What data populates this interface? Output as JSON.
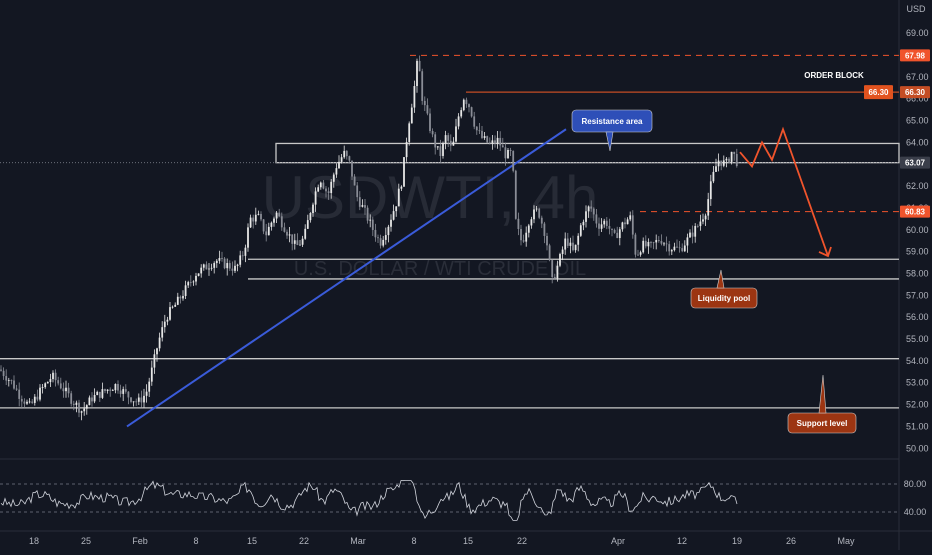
{
  "chart_data": {
    "type": "candlestick",
    "symbol_watermark": "USDWTI, 4h",
    "watermark_subtitle": "U.S. DOLLAR / WTI CRUDE OIL",
    "currency": "USD",
    "y_range": [
      49.6,
      69.6
    ],
    "y_ticks": [
      "69.00",
      "67.00",
      "66.00",
      "65.00",
      "64.00",
      "63.00",
      "62.00",
      "61.00",
      "60.00",
      "59.00",
      "58.00",
      "57.00",
      "56.00",
      "55.00",
      "54.00",
      "53.00",
      "52.00",
      "51.00",
      "50.00"
    ],
    "x_ticks": [
      "18",
      "25",
      "Feb",
      "8",
      "15",
      "22",
      "Mar",
      "8",
      "15",
      "22",
      "Apr",
      "12",
      "19",
      "26",
      "May"
    ],
    "price_path": [
      [
        0,
        53.6
      ],
      [
        12,
        53.0
      ],
      [
        20,
        52.4
      ],
      [
        30,
        51.9
      ],
      [
        40,
        52.6
      ],
      [
        52,
        53.3
      ],
      [
        62,
        52.8
      ],
      [
        72,
        52.2
      ],
      [
        82,
        51.7
      ],
      [
        92,
        52.3
      ],
      [
        104,
        52.6
      ],
      [
        116,
        52.9
      ],
      [
        128,
        52.4
      ],
      [
        138,
        52.1
      ],
      [
        146,
        52.5
      ],
      [
        152,
        53.6
      ],
      [
        158,
        54.8
      ],
      [
        166,
        56.0
      ],
      [
        176,
        56.6
      ],
      [
        186,
        57.3
      ],
      [
        196,
        58.0
      ],
      [
        206,
        58.3
      ],
      [
        216,
        58.6
      ],
      [
        226,
        58.4
      ],
      [
        236,
        58.2
      ],
      [
        244,
        59.0
      ],
      [
        250,
        60.5
      ],
      [
        258,
        60.6
      ],
      [
        266,
        59.8
      ],
      [
        276,
        60.8
      ],
      [
        286,
        60.0
      ],
      [
        296,
        59.2
      ],
      [
        304,
        59.6
      ],
      [
        312,
        61.2
      ],
      [
        320,
        62.4
      ],
      [
        328,
        61.6
      ],
      [
        336,
        62.9
      ],
      [
        344,
        63.5
      ],
      [
        350,
        63.0
      ],
      [
        356,
        61.6
      ],
      [
        364,
        60.9
      ],
      [
        372,
        60.1
      ],
      [
        380,
        59.4
      ],
      [
        388,
        60.2
      ],
      [
        396,
        61.2
      ],
      [
        402,
        62.3
      ],
      [
        408,
        64.7
      ],
      [
        414,
        66.4
      ],
      [
        418,
        67.9
      ],
      [
        422,
        66.1
      ],
      [
        428,
        65.0
      ],
      [
        434,
        64.0
      ],
      [
        440,
        63.4
      ],
      [
        446,
        64.3
      ],
      [
        452,
        63.6
      ],
      [
        458,
        65.1
      ],
      [
        464,
        66.1
      ],
      [
        470,
        65.6
      ],
      [
        476,
        64.6
      ],
      [
        482,
        64.2
      ],
      [
        490,
        63.9
      ],
      [
        498,
        64.1
      ],
      [
        506,
        63.4
      ],
      [
        512,
        63.5
      ],
      [
        516,
        60.2
      ],
      [
        522,
        59.4
      ],
      [
        530,
        60.6
      ],
      [
        538,
        60.9
      ],
      [
        546,
        59.7
      ],
      [
        552,
        57.6
      ],
      [
        558,
        58.4
      ],
      [
        566,
        59.6
      ],
      [
        574,
        58.9
      ],
      [
        582,
        60.4
      ],
      [
        590,
        61.1
      ],
      [
        598,
        60.2
      ],
      [
        606,
        60.4
      ],
      [
        614,
        59.6
      ],
      [
        622,
        60.2
      ],
      [
        630,
        60.6
      ],
      [
        636,
        58.8
      ],
      [
        642,
        59.3
      ],
      [
        650,
        59.2
      ],
      [
        660,
        59.6
      ],
      [
        670,
        59.2
      ],
      [
        680,
        59.1
      ],
      [
        690,
        59.7
      ],
      [
        698,
        60.2
      ],
      [
        706,
        60.9
      ],
      [
        712,
        62.3
      ],
      [
        718,
        63.2
      ],
      [
        726,
        63.0
      ],
      [
        732,
        63.6
      ],
      [
        738,
        63.0
      ]
    ],
    "horizontal_levels": [
      {
        "price": 67.98,
        "label": "67.98",
        "style": "dashed",
        "color": "#f0542c"
      },
      {
        "price": 66.3,
        "label": "66.30",
        "style": "solid",
        "color": "#c44d24"
      },
      {
        "price": 63.07,
        "label": "63.07",
        "style": "dotted",
        "color": "#787b86"
      },
      {
        "price": 60.83,
        "label": "60.83",
        "style": "dashed",
        "color": "#f0542c"
      },
      {
        "price": 58.65,
        "label": "",
        "style": "solid",
        "color": "#c8c8c8"
      },
      {
        "price": 57.75,
        "label": "",
        "style": "solid",
        "color": "#c8c8c8"
      },
      {
        "price": 54.1,
        "label": "",
        "style": "solid",
        "color": "#c8c8c8"
      },
      {
        "price": 51.85,
        "label": "",
        "style": "solid",
        "color": "#c8c8c8"
      }
    ],
    "annotations": [
      {
        "text": "ORDER BLOCK",
        "type": "plain"
      },
      {
        "text": "Resistance area",
        "type": "callout",
        "color": "#2e4fb8"
      },
      {
        "text": "Liquidity pool",
        "type": "callout",
        "color": "#9c3512"
      },
      {
        "text": "Support level",
        "type": "callout",
        "color": "#9c3512"
      }
    ],
    "oscillator": {
      "levels": [
        "80.00",
        "40.00"
      ]
    },
    "colors": {
      "background": "#131722",
      "candles": "#e6e6e6",
      "trendline": "#3a5bd9",
      "projection": "#f0542c"
    }
  }
}
